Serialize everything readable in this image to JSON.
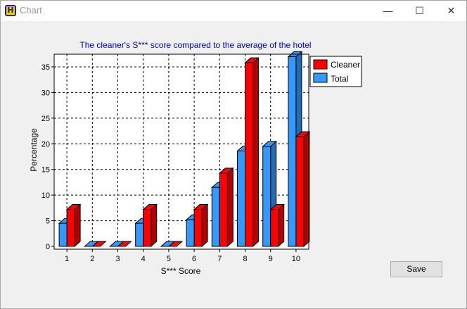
{
  "window": {
    "title": "Chart",
    "app_icon_letter": "H",
    "controls": {
      "minimize": "—",
      "maximize": "☐",
      "close": "✕"
    }
  },
  "buttons": {
    "save_label": "Save"
  },
  "colors": {
    "cleaner": "#ff0000",
    "total": "#3399ff",
    "title": "#0000cc"
  },
  "chart_data": {
    "type": "bar",
    "title": "The cleaner's S*** score compared to the average of the hotel",
    "xlabel": "S*** Score",
    "ylabel": "Percentage",
    "categories": [
      "1",
      "2",
      "3",
      "4",
      "5",
      "6",
      "7",
      "8",
      "9",
      "10"
    ],
    "series": [
      {
        "name": "Total",
        "values": [
          4.5,
          0,
          0,
          4.5,
          0,
          5.2,
          11.5,
          18.6,
          19.5,
          37
        ]
      },
      {
        "name": "Cleaner",
        "values": [
          7.2,
          0,
          0,
          7.2,
          0,
          7.2,
          14.3,
          35.8,
          7.2,
          21.4
        ]
      }
    ],
    "yticks": [
      0,
      5,
      10,
      15,
      20,
      25,
      30,
      35
    ],
    "ylim": [
      0,
      37.5
    ],
    "grid": true,
    "legend_position": "top-right",
    "style": "3d"
  }
}
